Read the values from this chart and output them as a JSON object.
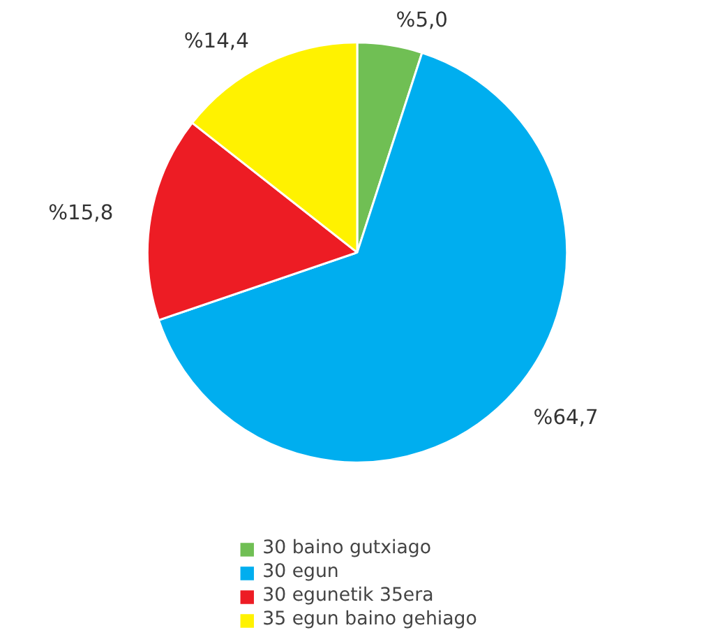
{
  "chart_data": {
    "type": "pie",
    "categories": [
      "30 baino gutxiago",
      "30 egun",
      "30 egunetik 35era",
      "35 egun baino gehiago"
    ],
    "values": [
      5.0,
      64.7,
      15.8,
      14.4
    ],
    "value_labels": [
      "%5,0",
      "%64,7",
      "%15,8",
      "%14,4"
    ],
    "colors": [
      "#70bf54",
      "#00aeef",
      "#ed1c24",
      "#fff200"
    ],
    "legend": "bottom"
  }
}
